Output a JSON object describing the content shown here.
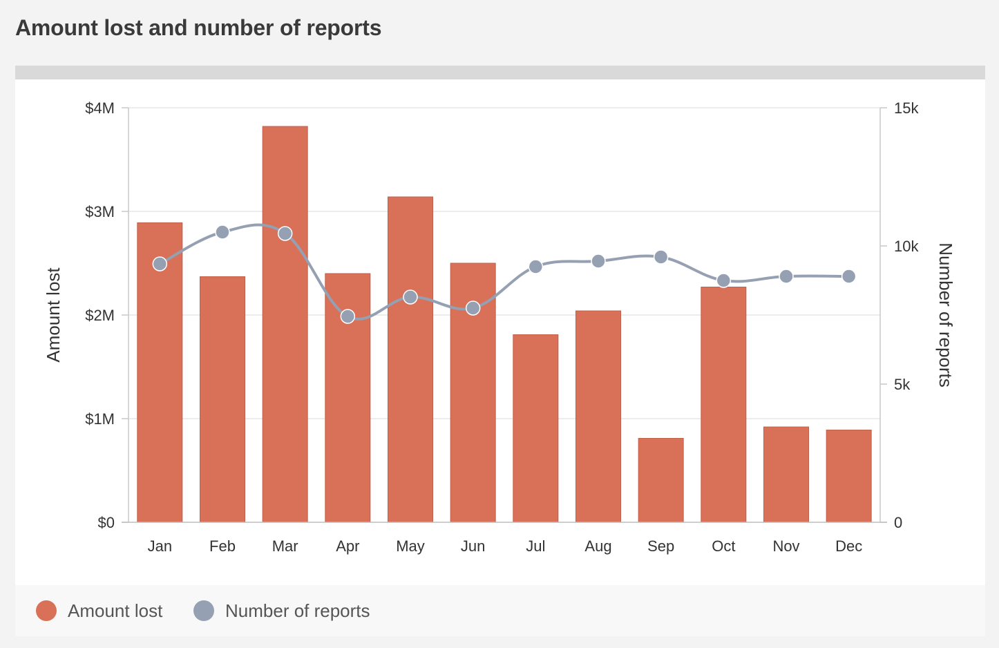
{
  "header": {
    "title": "Amount lost and number of reports"
  },
  "colors": {
    "bar": "#d97058",
    "line": "#95a0b2",
    "grid": "#e6e6e6",
    "axis": "#c9c9c9"
  },
  "legend": [
    {
      "label": "Amount lost",
      "color": "#d97058"
    },
    {
      "label": "Number of reports",
      "color": "#95a0b2"
    }
  ],
  "chart_data": {
    "type": "bar",
    "categories": [
      "Jan",
      "Feb",
      "Mar",
      "Apr",
      "May",
      "Jun",
      "Jul",
      "Aug",
      "Sep",
      "Oct",
      "Nov",
      "Dec"
    ],
    "series": [
      {
        "name": "Amount lost",
        "type": "bar",
        "axis": "left",
        "values": [
          2890000,
          2370000,
          3820000,
          2400000,
          3140000,
          2500000,
          1810000,
          2040000,
          810000,
          2270000,
          920000,
          890000
        ]
      },
      {
        "name": "Number of reports",
        "type": "line",
        "axis": "right",
        "smooth": true,
        "values": [
          9350,
          10500,
          10450,
          7450,
          8150,
          7750,
          9250,
          9450,
          9600,
          8750,
          8900,
          8900
        ]
      }
    ],
    "ylabel": "Amount lost",
    "ylim": [
      0,
      4000000
    ],
    "yticks": [
      "$0",
      "$1M",
      "$2M",
      "$3M",
      "$4M"
    ],
    "y2label": "Number of reports",
    "y2lim": [
      0,
      15000
    ],
    "y2ticks": [
      "0",
      "5k",
      "10k",
      "15k"
    ],
    "grid": true,
    "legend_position": "bottom-left"
  }
}
